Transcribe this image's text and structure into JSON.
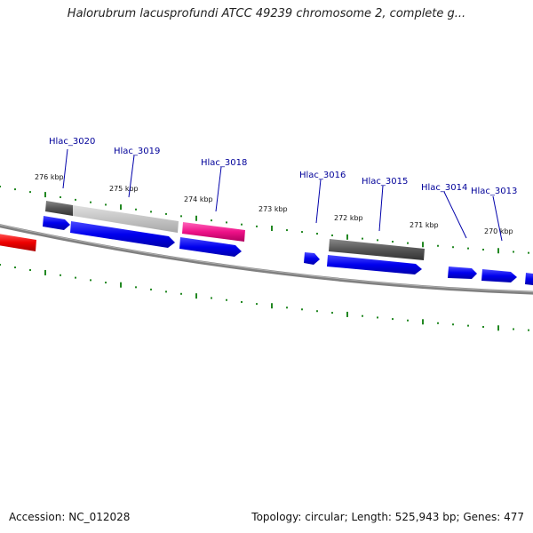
{
  "title": "Halorubrum lacusprofundi ATCC 49239 chromosome 2, complete g...",
  "footer": {
    "accession": "Accession: NC_012028",
    "summary": "Topology: circular; Length: 525,943 bp; Genes: 477"
  },
  "colors": {
    "forward_cds": "#0000ee",
    "reverse_cds": "#0000ee",
    "gene_dark": "#555555",
    "gene_light": "#c8c8c8",
    "pink_feature": "#ee1188",
    "red_feature": "#ee0000",
    "tick": "#228822",
    "backbone": "#808080",
    "label": "#000099"
  },
  "kbp_labels": [
    "276 kbp",
    "275 kbp",
    "274 kbp",
    "273 kbp",
    "272 kbp",
    "271 kbp",
    "270 kbp"
  ],
  "gene_labels": [
    "Hlac_3020",
    "Hlac_3019",
    "Hlac_3018",
    "Hlac_3016",
    "Hlac_3015",
    "Hlac_3014",
    "Hlac_3013"
  ]
}
